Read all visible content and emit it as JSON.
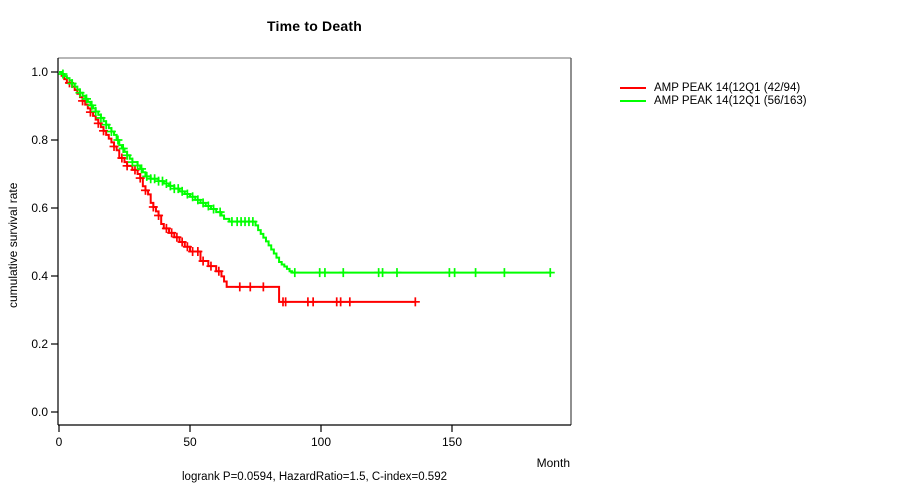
{
  "legend": {
    "items": [
      {
        "label": "AMP PEAK 14(12Q1 (42/94)",
        "color": "#ff0000"
      },
      {
        "label": "AMP PEAK 14(12Q1 (56/163)",
        "color": "#00ff00"
      }
    ]
  },
  "chart_data": {
    "type": "line",
    "subtype": "kaplan-meier-step",
    "title": "Time to Death",
    "xlabel": "Month",
    "ylabel": "cumulative survival rate",
    "footnote": "logrank P=0.0594, HazardRatio=1.5, C-index=0.592",
    "grid": false,
    "legend_position": "right-outside",
    "xlim": [
      0,
      195
    ],
    "ylim": [
      0.0,
      1.0
    ],
    "x_ticks": [
      {
        "label": "0",
        "value": 0
      },
      {
        "label": "50",
        "value": 50
      },
      {
        "label": "100",
        "value": 100
      },
      {
        "label": "150",
        "value": 150
      }
    ],
    "y_ticks": [
      {
        "label": "0.0",
        "value": 0.0
      },
      {
        "label": "0.2",
        "value": 0.2
      },
      {
        "label": "0.4",
        "value": 0.4
      },
      {
        "label": "0.6",
        "value": 0.6
      },
      {
        "label": "0.8",
        "value": 0.8
      },
      {
        "label": "1.0",
        "value": 1.0
      }
    ],
    "series": [
      {
        "name": "AMP PEAK 14(12Q1 (42/94)",
        "color": "#ff0000",
        "events_over_n": "42/94",
        "end_month": 136,
        "steps": [
          [
            0,
            1.0
          ],
          [
            1,
            0.989
          ],
          [
            2,
            0.979
          ],
          [
            3,
            0.968
          ],
          [
            5,
            0.957
          ],
          [
            6,
            0.947
          ],
          [
            7,
            0.936
          ],
          [
            8,
            0.926
          ],
          [
            9,
            0.915
          ],
          [
            10,
            0.904
          ],
          [
            11,
            0.893
          ],
          [
            12,
            0.882
          ],
          [
            13,
            0.871
          ],
          [
            14,
            0.86
          ],
          [
            15,
            0.849
          ],
          [
            16,
            0.838
          ],
          [
            17,
            0.827
          ],
          [
            18,
            0.815
          ],
          [
            19,
            0.804
          ],
          [
            20,
            0.793
          ],
          [
            21,
            0.781
          ],
          [
            22,
            0.77
          ],
          [
            23,
            0.747
          ],
          [
            25,
            0.735
          ],
          [
            26,
            0.724
          ],
          [
            28,
            0.712
          ],
          [
            30,
            0.7
          ],
          [
            31,
            0.688
          ],
          [
            32,
            0.664
          ],
          [
            33,
            0.652
          ],
          [
            34,
            0.64
          ],
          [
            35,
            0.615
          ],
          [
            36,
            0.603
          ],
          [
            37,
            0.59
          ],
          [
            38,
            0.578
          ],
          [
            39,
            0.553
          ],
          [
            40,
            0.54
          ],
          [
            42,
            0.527
          ],
          [
            44,
            0.514
          ],
          [
            46,
            0.5
          ],
          [
            48,
            0.486
          ],
          [
            50,
            0.472
          ],
          [
            54,
            0.444
          ],
          [
            57,
            0.429
          ],
          [
            60,
            0.414
          ],
          [
            62,
            0.399
          ],
          [
            63,
            0.384
          ],
          [
            64,
            0.368
          ],
          [
            84,
            0.324
          ]
        ],
        "censor_months": [
          4,
          9,
          12,
          15,
          17,
          21,
          24,
          26,
          29,
          31,
          33,
          36,
          38,
          41,
          43,
          45,
          47,
          49,
          51,
          53,
          55,
          58,
          61,
          69,
          73,
          78,
          85.5,
          86.5,
          95,
          97,
          106,
          107.5,
          111,
          136
        ]
      },
      {
        "name": "AMP PEAK 14(12Q1 (56/163)",
        "color": "#00ff00",
        "events_over_n": "56/163",
        "end_month": 188,
        "steps": [
          [
            0,
            1.0
          ],
          [
            1,
            0.994
          ],
          [
            2,
            0.988
          ],
          [
            3,
            0.982
          ],
          [
            4,
            0.975
          ],
          [
            5,
            0.966
          ],
          [
            6,
            0.957
          ],
          [
            7,
            0.948
          ],
          [
            8,
            0.939
          ],
          [
            9,
            0.93
          ],
          [
            10,
            0.921
          ],
          [
            11,
            0.912
          ],
          [
            12,
            0.902
          ],
          [
            13,
            0.893
          ],
          [
            14,
            0.884
          ],
          [
            15,
            0.874
          ],
          [
            16,
            0.865
          ],
          [
            17,
            0.855
          ],
          [
            18,
            0.845
          ],
          [
            19,
            0.835
          ],
          [
            20,
            0.825
          ],
          [
            21,
            0.815
          ],
          [
            22,
            0.8
          ],
          [
            23,
            0.785
          ],
          [
            24,
            0.775
          ],
          [
            25,
            0.765
          ],
          [
            26,
            0.755
          ],
          [
            27,
            0.745
          ],
          [
            28,
            0.735
          ],
          [
            30,
            0.725
          ],
          [
            31,
            0.715
          ],
          [
            32,
            0.705
          ],
          [
            33,
            0.693
          ],
          [
            35,
            0.686
          ],
          [
            38,
            0.679
          ],
          [
            40,
            0.672
          ],
          [
            42,
            0.665
          ],
          [
            44,
            0.657
          ],
          [
            46,
            0.649
          ],
          [
            48,
            0.641
          ],
          [
            50,
            0.633
          ],
          [
            52,
            0.624
          ],
          [
            54,
            0.615
          ],
          [
            56,
            0.606
          ],
          [
            58,
            0.597
          ],
          [
            60,
            0.588
          ],
          [
            62,
            0.578
          ],
          [
            63,
            0.568
          ],
          [
            65,
            0.56
          ],
          [
            75,
            0.549
          ],
          [
            76,
            0.535
          ],
          [
            77,
            0.524
          ],
          [
            78,
            0.513
          ],
          [
            79,
            0.502
          ],
          [
            80,
            0.49
          ],
          [
            81,
            0.478
          ],
          [
            82,
            0.466
          ],
          [
            83,
            0.454
          ],
          [
            84,
            0.441
          ],
          [
            85,
            0.434
          ],
          [
            86,
            0.428
          ],
          [
            87,
            0.421
          ],
          [
            88,
            0.414
          ],
          [
            89,
            0.41
          ]
        ],
        "censor_months": [
          1.5,
          5,
          8,
          10.5,
          12.5,
          14,
          16,
          18,
          20,
          22.5,
          24.5,
          26,
          28,
          30,
          31.5,
          33.5,
          35,
          36.5,
          38,
          39.5,
          41,
          42.5,
          44,
          45.5,
          47,
          49,
          51,
          53,
          55,
          57,
          59,
          61.5,
          66,
          68,
          69.5,
          71,
          72.5,
          74,
          90,
          99.5,
          101.5,
          108.5,
          122,
          123.5,
          129,
          149,
          151,
          159,
          170,
          187.5
        ]
      }
    ]
  }
}
